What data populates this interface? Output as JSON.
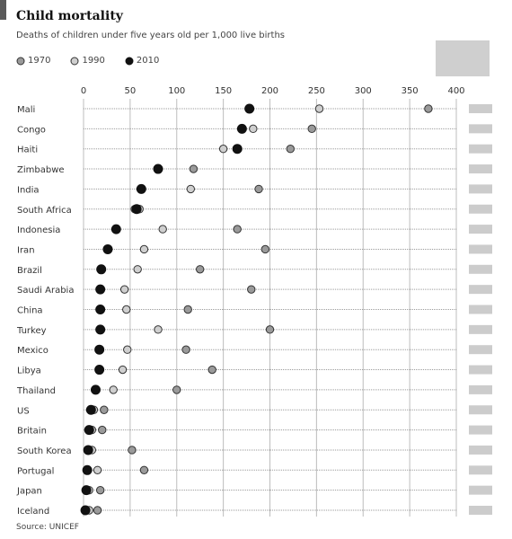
{
  "chart_data": {
    "type": "scatter",
    "title": "Child mortality",
    "subtitle": "Deaths of children under five years old per 1,000 live births",
    "xlim": [
      0,
      400
    ],
    "x_ticks": [
      0,
      50,
      100,
      150,
      200,
      250,
      300,
      350,
      400
    ],
    "grid": true,
    "legend_placement": "top-left",
    "source": "Source: UNICEF",
    "categories": [
      "Mali",
      "Congo",
      "Haiti",
      "Zimbabwe",
      "India",
      "South Africa",
      "Indonesia",
      "Iran",
      "Brazil",
      "Saudi Arabia",
      "China",
      "Turkey",
      "Mexico",
      "Libya",
      "Thailand",
      "US",
      "Britain",
      "South Korea",
      "Portugal",
      "Japan",
      "Iceland"
    ],
    "series": [
      {
        "name": "1970",
        "color": "#9a9a9a",
        "values": [
          370,
          245,
          222,
          118,
          188,
          55,
          165,
          195,
          125,
          180,
          112,
          200,
          110,
          138,
          100,
          22,
          20,
          52,
          65,
          18,
          15
        ]
      },
      {
        "name": "1990",
        "color": "#cfcfcf",
        "values": [
          253,
          182,
          150,
          80,
          115,
          60,
          85,
          65,
          58,
          44,
          46,
          80,
          47,
          42,
          32,
          11,
          9,
          9,
          15,
          6,
          6
        ]
      },
      {
        "name": "2010",
        "color": "#111111",
        "values": [
          178,
          170,
          165,
          80,
          62,
          57,
          35,
          26,
          19,
          18,
          18,
          18,
          17,
          17,
          13,
          8,
          6,
          5,
          4,
          3,
          2
        ]
      }
    ]
  }
}
